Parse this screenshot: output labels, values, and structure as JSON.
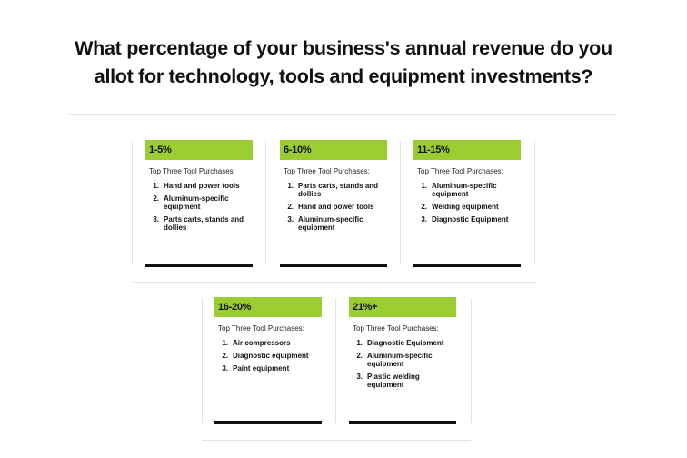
{
  "title_line1": "What percentage of your business's annual revenue do you",
  "title_line2": "allot for technology, tools and equipment investments?",
  "accent_color": "#9acd32",
  "cards": [
    {
      "range": "1-5%",
      "subtitle": "Top Three Tool Purchases:",
      "items": [
        {
          "num": "1.",
          "text": "Hand and power tools"
        },
        {
          "num": "2.",
          "text": "Aluminum-specific equipment"
        },
        {
          "num": "3.",
          "text": "Parts carts, stands and dollies"
        }
      ]
    },
    {
      "range": "6-10%",
      "subtitle": "Top Three Tool Purchases:",
      "items": [
        {
          "num": "1.",
          "text": "Parts carts, stands and dollies"
        },
        {
          "num": "2.",
          "text": "Hand and power tools"
        },
        {
          "num": "3.",
          "text": "Aluminum-specific equipment"
        }
      ]
    },
    {
      "range": "11-15%",
      "subtitle": "Top Three Tool Purchases:",
      "items": [
        {
          "num": "1.",
          "text": "Aluminum-specific equipment"
        },
        {
          "num": "2.",
          "text": "Welding equipment"
        },
        {
          "num": "3.",
          "text": "Diagnostic Equipment"
        }
      ]
    },
    {
      "range": "16-20%",
      "subtitle": "Top Three Tool Purchases:",
      "items": [
        {
          "num": "1.",
          "text": "Air compressors"
        },
        {
          "num": "2.",
          "text": "Diagnostic equipment"
        },
        {
          "num": "3.",
          "text": "Paint equipment"
        }
      ]
    },
    {
      "range": "21%+",
      "subtitle": "Top Three Tool Purchases:",
      "items": [
        {
          "num": "1.",
          "text": "Diagnostic Equipment"
        },
        {
          "num": "2.",
          "text": "Aluminum-specific equipment"
        },
        {
          "num": "3.",
          "text": "Plastic welding equipment"
        }
      ]
    }
  ]
}
